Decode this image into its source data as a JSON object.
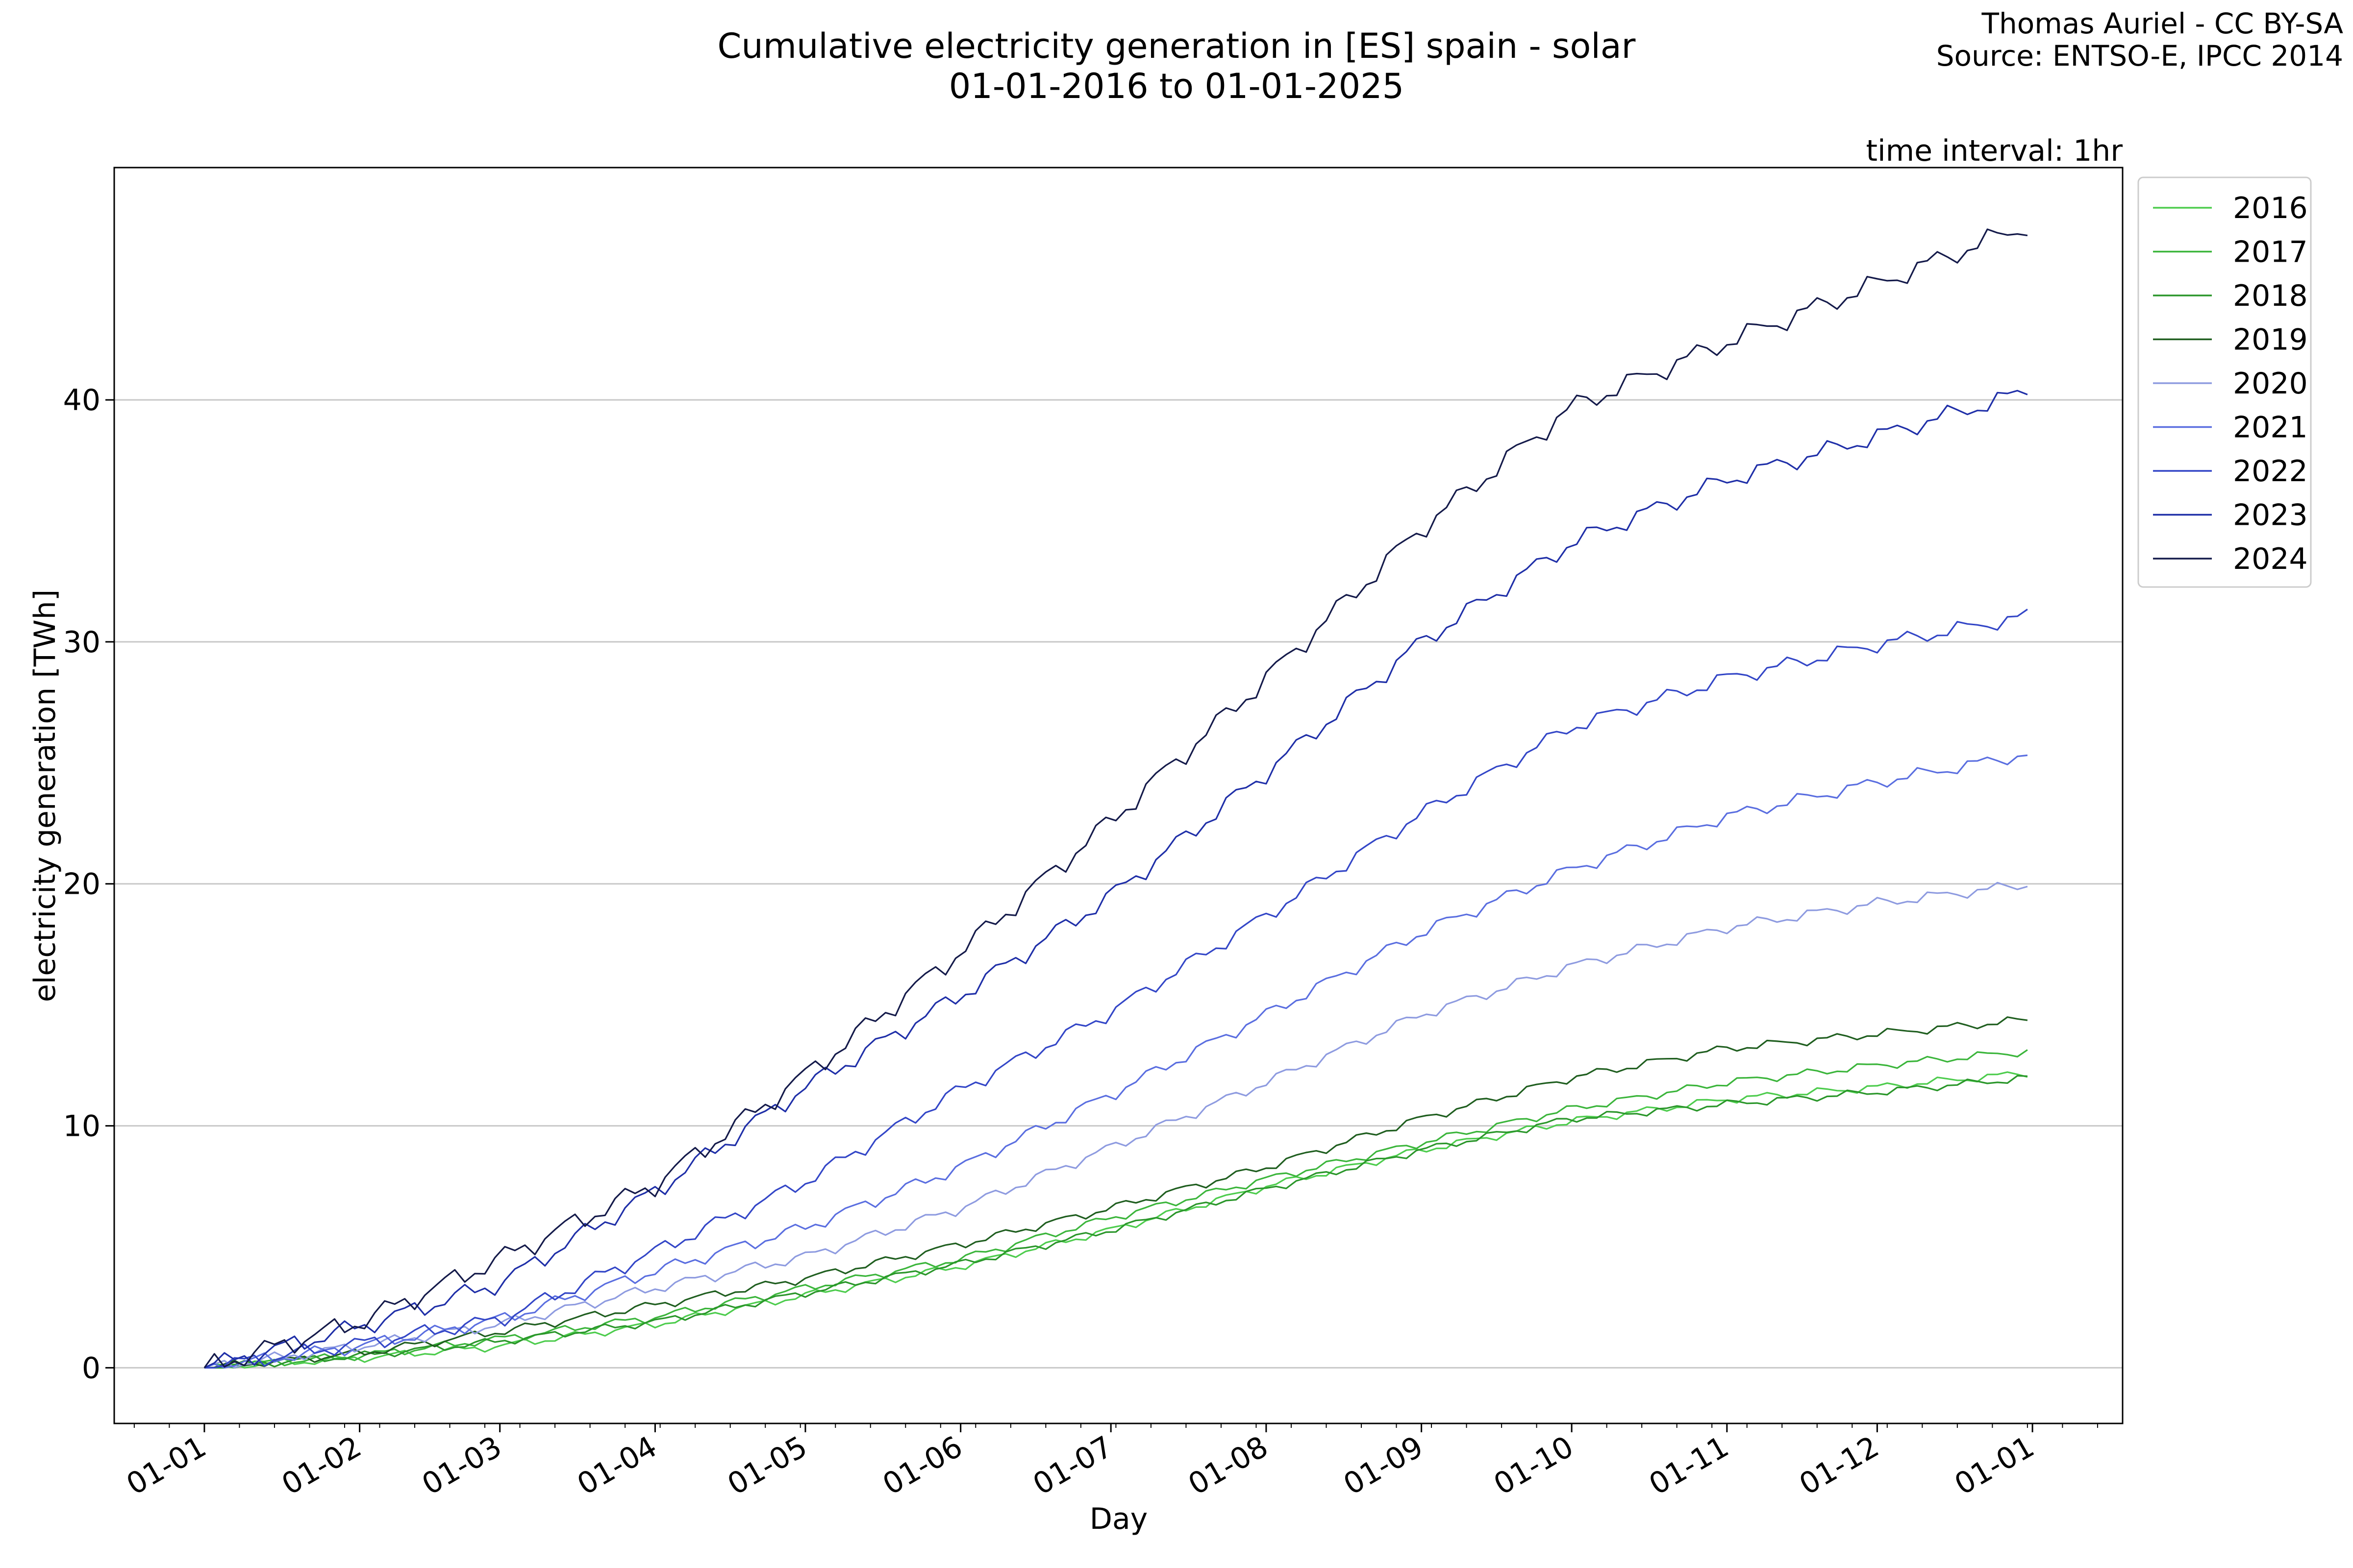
{
  "header": {
    "title_line1": "Cumulative electricity generation in [ES] spain - solar",
    "title_line2": "01-01-2016 to 01-01-2025",
    "credit_line1": "Thomas Auriel - CC BY-SA",
    "credit_line2": "Source: ENTSO-E, IPCC 2014",
    "interval": "time interval: 1hr"
  },
  "chart_data": {
    "type": "line",
    "title": "Cumulative electricity generation in [ES] spain - solar",
    "subtitle": "01-01-2016 to 01-01-2025",
    "xlabel": "Day",
    "ylabel": "electricity generation [TWh]",
    "x_unit": "day of year",
    "xlim_days": [
      -18,
      383
    ],
    "ylim": [
      -2.3,
      49.6
    ],
    "x_ticks": [
      {
        "label": "01-01",
        "day": 0
      },
      {
        "label": "01-02",
        "day": 31
      },
      {
        "label": "01-03",
        "day": 59
      },
      {
        "label": "01-04",
        "day": 90
      },
      {
        "label": "01-05",
        "day": 120
      },
      {
        "label": "01-06",
        "day": 151
      },
      {
        "label": "01-07",
        "day": 181
      },
      {
        "label": "01-08",
        "day": 212
      },
      {
        "label": "01-09",
        "day": 243
      },
      {
        "label": "01-10",
        "day": 273
      },
      {
        "label": "01-11",
        "day": 304
      },
      {
        "label": "01-12",
        "day": 334
      },
      {
        "label": "01-01",
        "day": 365
      }
    ],
    "y_ticks": [
      0,
      10,
      20,
      30,
      40
    ],
    "grid": "horizontal",
    "legend_position": "outside-right-top",
    "x": [
      "01-01",
      "01-02",
      "01-03",
      "01-04",
      "01-05",
      "01-06",
      "01-07",
      "01-08",
      "01-09",
      "01-10",
      "01-11",
      "01-12",
      "01-01"
    ],
    "series": [
      {
        "name": "2016",
        "color": "#4dcc4d",
        "values": [
          0,
          0.4,
          0.9,
          1.8,
          3.0,
          4.2,
          5.7,
          7.5,
          9.0,
          10.2,
          11.1,
          11.6,
          12.2
        ]
      },
      {
        "name": "2017",
        "color": "#3bb53b",
        "values": [
          0,
          0.5,
          1.2,
          2.1,
          3.3,
          4.5,
          6.2,
          7.8,
          9.3,
          10.7,
          11.8,
          12.5,
          13.1
        ]
      },
      {
        "name": "2018",
        "color": "#2a962a",
        "values": [
          0,
          0.5,
          1.1,
          1.9,
          3.1,
          4.3,
          5.7,
          7.4,
          9.0,
          10.3,
          10.9,
          11.4,
          12.0
        ]
      },
      {
        "name": "2019",
        "color": "#1f5e1f",
        "values": [
          0,
          0.6,
          1.5,
          2.6,
          3.7,
          5.1,
          6.6,
          8.3,
          10.3,
          12.0,
          13.2,
          13.8,
          14.4
        ]
      },
      {
        "name": "2020",
        "color": "#8e9be0",
        "values": [
          0,
          0.9,
          1.8,
          3.3,
          4.6,
          6.6,
          9.1,
          11.8,
          14.6,
          16.6,
          18.2,
          19.2,
          20.0
        ]
      },
      {
        "name": "2021",
        "color": "#5a6ee0",
        "values": [
          0,
          0.9,
          2.0,
          4.0,
          5.8,
          8.3,
          11.3,
          14.6,
          18.0,
          20.6,
          22.8,
          24.2,
          25.4
        ]
      },
      {
        "name": "2022",
        "color": "#3346c7",
        "values": [
          0,
          1.0,
          2.0,
          4.8,
          7.7,
          11.5,
          14.7,
          18.7,
          22.9,
          26.5,
          28.5,
          29.9,
          31.1
        ]
      },
      {
        "name": "2023",
        "color": "#1f2fa8",
        "values": [
          0,
          1.7,
          3.5,
          7.3,
          11.6,
          15.4,
          19.5,
          24.6,
          30.0,
          34.1,
          36.7,
          38.5,
          40.4
        ]
      },
      {
        "name": "2024",
        "color": "#141a4a",
        "values": [
          0,
          1.9,
          4.5,
          7.6,
          12.1,
          17.2,
          22.6,
          28.5,
          34.7,
          39.7,
          42.4,
          44.8,
          47.3
        ]
      }
    ]
  }
}
